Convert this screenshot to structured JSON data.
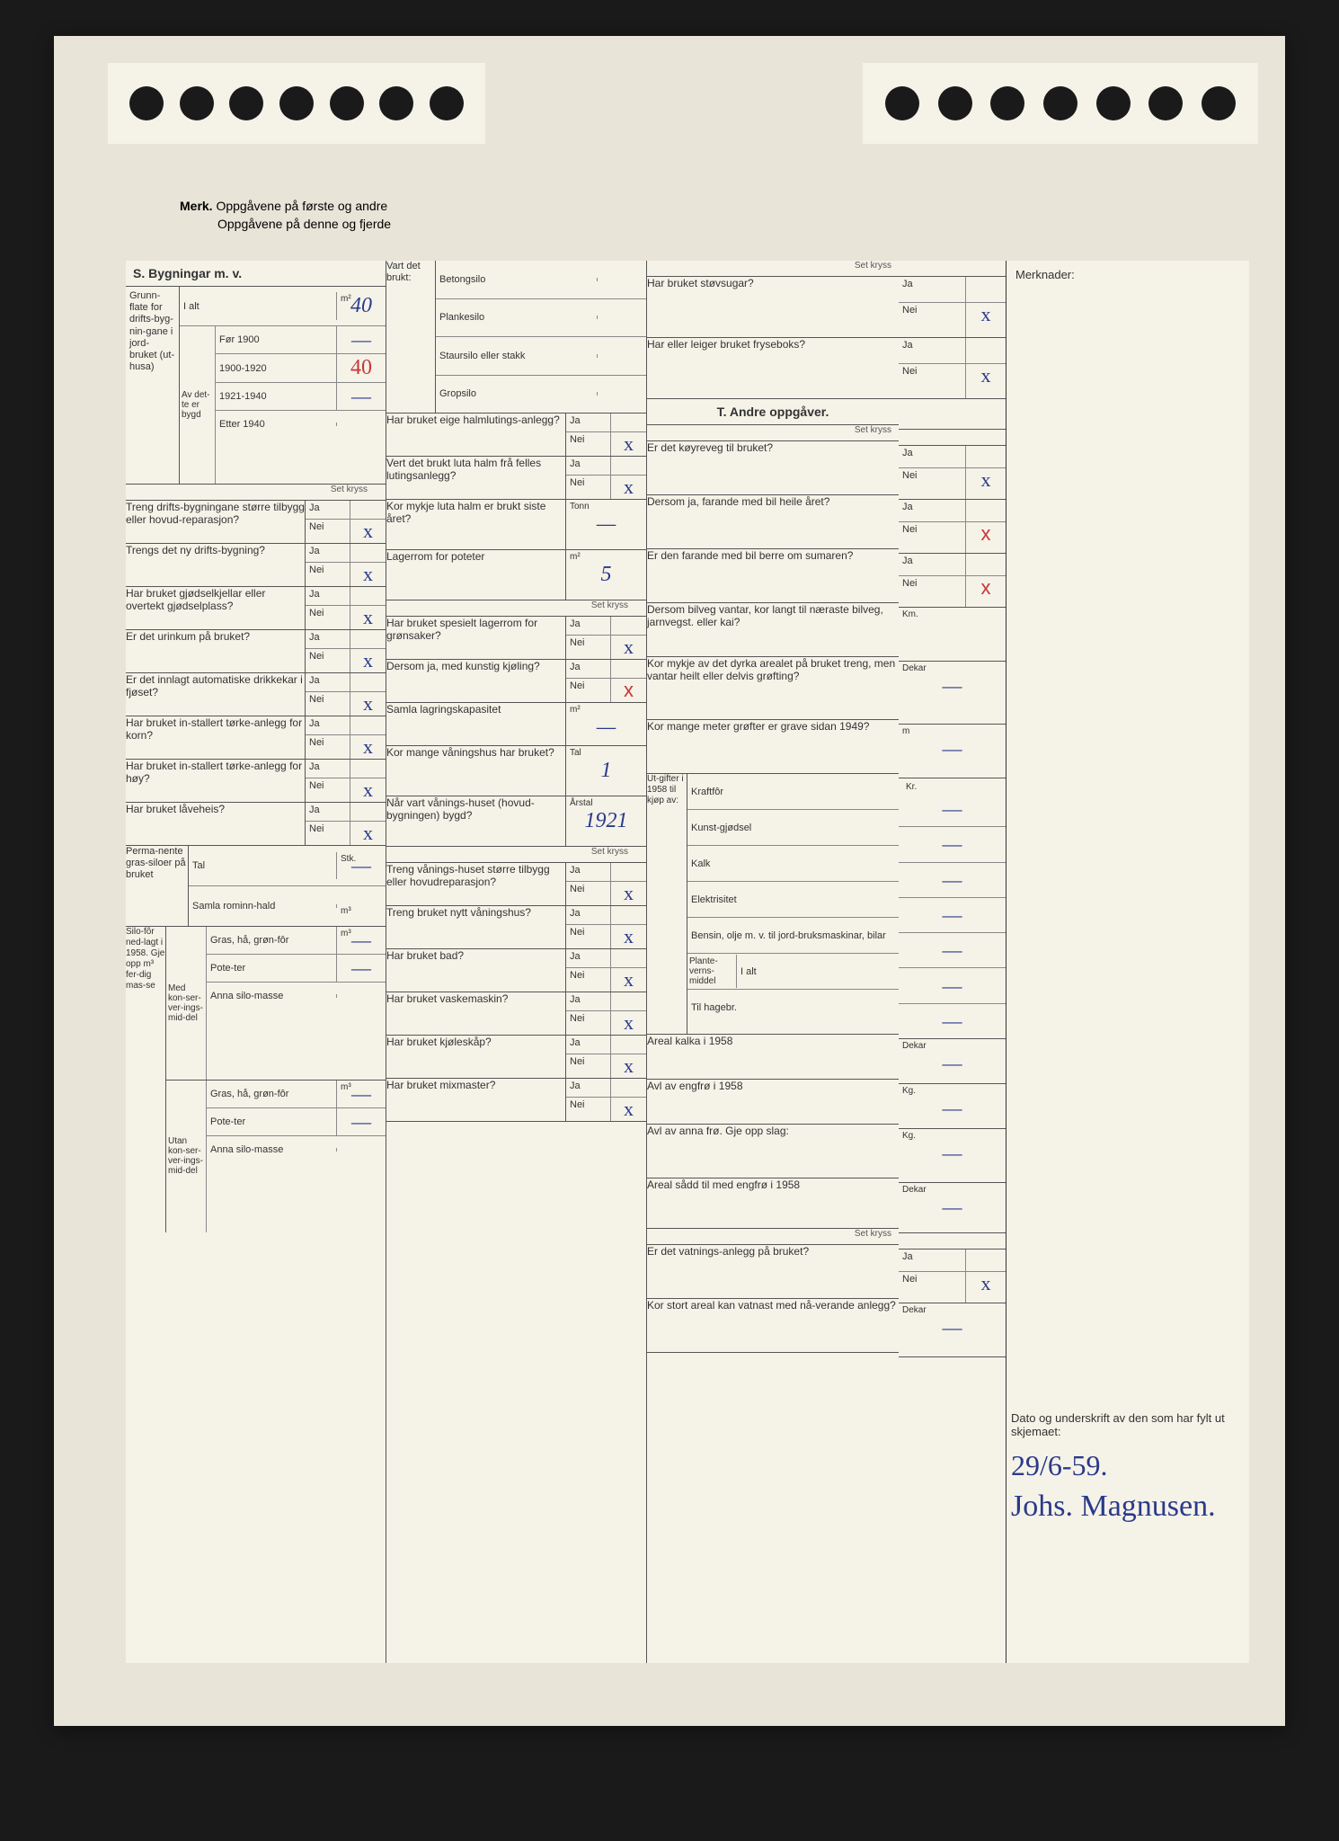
{
  "merk": {
    "bold": "Merk.",
    "line1": "Oppgåvene på første og andre",
    "line2": "Oppgåvene på denne og fjerde"
  },
  "colors": {
    "background": "#1a1a1a",
    "paper": "#e8e4d8",
    "form_paper": "#f5f2e8",
    "line": "#555555",
    "text": "#333333",
    "handwritten_blue": "#2a3a8a",
    "handwritten_red": "#c83838"
  },
  "merknader_label": "Merknader:",
  "set_kryss": "Set kryss",
  "ja": "Ja",
  "nei": "Nei",
  "section_s": {
    "title": "S. Bygningar m. v.",
    "grunnflate": {
      "label": "Grunn-flate for drifts-byg-nin-gane i jord-bruket (ut-husa)",
      "i_alt_label": "I alt",
      "i_alt_value": "40",
      "av_dette_bygd": "Av det-te er bygd",
      "periods": [
        {
          "label": "Før 1900",
          "value": "—"
        },
        {
          "label": "1900-1920",
          "value": "40"
        },
        {
          "label": "1921-1940",
          "value": "—"
        },
        {
          "label": "Etter 1940",
          "value": ""
        }
      ],
      "unit": "m²"
    },
    "questions": [
      {
        "q": "Treng drifts-bygningane større tilbygg eller hovud-reparasjon?",
        "ja": "",
        "nei": "x"
      },
      {
        "q": "Trengs det ny drifts-bygning?",
        "ja": "",
        "nei": "x"
      },
      {
        "q": "Har bruket gjødselkjellar eller overtekt gjødselplass?",
        "ja": "",
        "nei": "x"
      },
      {
        "q": "Er det urinkum på bruket?",
        "ja": "",
        "nei": "x"
      },
      {
        "q": "Er det innlagt automatiske drikkekar i fjøset?",
        "ja": "",
        "nei": "x"
      },
      {
        "q": "Har bruket in-stallert tørke-anlegg for korn?",
        "ja": "",
        "nei": "x"
      },
      {
        "q": "Har bruket in-stallert tørke-anlegg for høy?",
        "ja": "",
        "nei": "x"
      },
      {
        "q": "Har bruket låveheis?",
        "ja": "",
        "nei": "x"
      }
    ],
    "grassiloer": {
      "label": "Perma-nente gras-siloer på bruket",
      "tal_label": "Tal",
      "tal_unit": "Stk.",
      "tal_value": "—",
      "samla_label": "Samla rominn-hald",
      "samla_unit": "m³"
    },
    "silofor": {
      "label": "Silo-fôr ned-lagt i 1958. Gje opp m³ fer-dig mas-se",
      "med_label": "Med kon-ser-ver-ings-mid-del",
      "utan_label": "Utan kon-ser-ver-ings-mid-del",
      "unit": "m³",
      "items": [
        {
          "label": "Gras, hå, grøn-fôr",
          "med": "—",
          "utan": "—"
        },
        {
          "label": "Pote-ter",
          "med": "—",
          "utan": "—"
        },
        {
          "label": "Anna silo-masse",
          "med": "",
          "utan": ""
        }
      ]
    }
  },
  "col2": {
    "vart_brukt": {
      "label": "Vart det brukt:",
      "items": [
        "Betongsilo",
        "Plankesilo",
        "Staursilo eller stakk",
        "Gropsilo"
      ]
    },
    "halmluting": {
      "q": "Har bruket eige halmlutings-anlegg?",
      "ja": "",
      "nei": "x"
    },
    "luta_halm_felles": {
      "q": "Vert det brukt luta halm frå felles lutingsanlegg?",
      "ja": "",
      "nei": "x"
    },
    "luta_halm_mengd": {
      "q": "Kor mykje luta halm er brukt siste året?",
      "unit": "Tonn",
      "value": "—"
    },
    "lagerrom_poteter": {
      "q": "Lagerrom for poteter",
      "unit": "m²",
      "value": "5"
    },
    "lagerrom_gronsaker": {
      "q": "Har bruket spesielt lagerrom for grønsaker?",
      "ja": "",
      "nei": "x"
    },
    "kunstig_kjoling": {
      "q": "Dersom ja, med kunstig kjøling?",
      "ja": "",
      "nei": "x",
      "strike": true
    },
    "samla_lagring": {
      "q": "Samla lagringskapasitet",
      "unit": "m²",
      "value": "—"
    },
    "vaningshus_tal": {
      "q": "Kor mange våningshus har bruket?",
      "unit": "Tal",
      "value": "1"
    },
    "vaningshus_bygd": {
      "q": "Når vart vånings-huset (hovud-bygningen) bygd?",
      "unit": "Årstal",
      "value": "1921"
    },
    "vaningshus_storre": {
      "q": "Treng vånings-huset større tilbygg eller hovudreparasjon?",
      "ja": "",
      "nei": "x"
    },
    "nytt_vaningshus": {
      "q": "Treng bruket nytt våningshus?",
      "ja": "",
      "nei": "x"
    },
    "bad": {
      "q": "Har bruket bad?",
      "ja": "",
      "nei": "x"
    },
    "vaskemaskin": {
      "q": "Har bruket vaskemaskin?",
      "ja": "",
      "nei": "x"
    },
    "kjoleskap": {
      "q": "Har bruket kjøleskåp?",
      "ja": "",
      "nei": "x"
    },
    "mixmaster": {
      "q": "Har bruket mixmaster?",
      "ja": "",
      "nei": "x"
    }
  },
  "col3": {
    "stovsugar": {
      "q": "Har bruket støvsugar?",
      "ja": "",
      "nei": "x"
    },
    "fryseboks": {
      "q": "Har eller leiger bruket fryseboks?",
      "ja": "",
      "nei": "x"
    },
    "section_t_title": "T. Andre oppgåver.",
    "koyreveg": {
      "q": "Er det køyreveg til bruket?",
      "ja": "",
      "nei": "x"
    },
    "farande_heile": {
      "q": "Dersom ja, farande med bil heile året?",
      "ja": "",
      "nei": "x",
      "red": true
    },
    "farande_sumar": {
      "q": "Er den farande med bil berre om sumaren?",
      "ja": "",
      "nei": "x",
      "red": true
    },
    "bilveg_vantar": {
      "q": "Dersom bilveg vantar, kor langt til næraste bilveg, jarnvegst. eller kai?",
      "unit": "Km.",
      "value": ""
    },
    "grofting": {
      "q": "Kor mykje av det dyrka arealet på bruket treng, men vantar heilt eller delvis grøfting?",
      "unit": "Dekar",
      "value": "—"
    },
    "grofter_1949": {
      "q": "Kor mange meter grøfter er grave sidan 1949?",
      "unit": "m",
      "value": "—"
    },
    "utgifter": {
      "label": "Ut-gifter i 1958 til kjøp av:",
      "unit": "Kr.",
      "items": [
        {
          "label": "Kraftfôr",
          "value": "—"
        },
        {
          "label": "Kunst-gjødsel",
          "value": "—"
        },
        {
          "label": "Kalk",
          "value": "—"
        },
        {
          "label": "Elektrisitet",
          "value": "—"
        },
        {
          "label": "Bensin, olje m. v. til jord-bruksmaskinar, bilar",
          "value": "—"
        },
        {
          "label_pre": "Plante-verns-middel",
          "label": "I alt",
          "value": "—"
        },
        {
          "label": "Til hagebr.",
          "value": "—"
        }
      ]
    },
    "areal_kalka": {
      "q": "Areal kalka i 1958",
      "unit": "Dekar",
      "value": "—"
    },
    "avl_engfro": {
      "q": "Avl av engfrø i 1958",
      "unit": "Kg.",
      "value": "—"
    },
    "avl_anna_fro": {
      "q": "Avl av anna frø. Gje opp slag:",
      "unit": "Kg.",
      "value": "—"
    },
    "areal_sadd": {
      "q": "Areal sådd til med engfrø i 1958",
      "unit": "Dekar",
      "value": "—"
    },
    "vatning": {
      "q": "Er det vatnings-anlegg på bruket?",
      "ja": "",
      "nei": "x"
    },
    "vatnast_areal": {
      "q": "Kor stort areal kan vatnast med nå-verande anlegg?",
      "unit": "Dekar",
      "value": "—"
    }
  },
  "signature": {
    "label": "Dato og underskrift av den som har fylt ut skjemaet:",
    "date": "29/6-59.",
    "name": "Johs. Magnusen."
  }
}
